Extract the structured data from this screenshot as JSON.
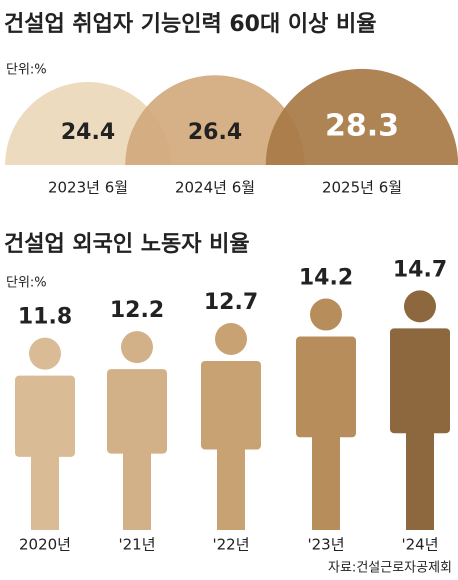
{
  "chart_data": [
    {
      "type": "semicircle",
      "title": "건설업 취업자 기능인력 60대 이상 비율",
      "unit": "단위:%",
      "categories": [
        "2023년 6월",
        "2024년 6월",
        "2025년 6월"
      ],
      "values": [
        24.4,
        26.4,
        28.3
      ],
      "colors": [
        "#ecd8bb",
        "#d2a97d",
        "#a87a45"
      ]
    },
    {
      "type": "pictogram",
      "title": "건설업 외국인 노동자 비율",
      "unit": "단위:%",
      "categories": [
        "2020년",
        "'21년",
        "'22년",
        "'23년",
        "'24년"
      ],
      "values": [
        11.8,
        12.2,
        12.7,
        14.2,
        14.7
      ],
      "colors": [
        "#d9bb95",
        "#d2b088",
        "#c9a274",
        "#b88d5c",
        "#8d673d"
      ],
      "source": "자료:건설근로자공제회"
    }
  ]
}
